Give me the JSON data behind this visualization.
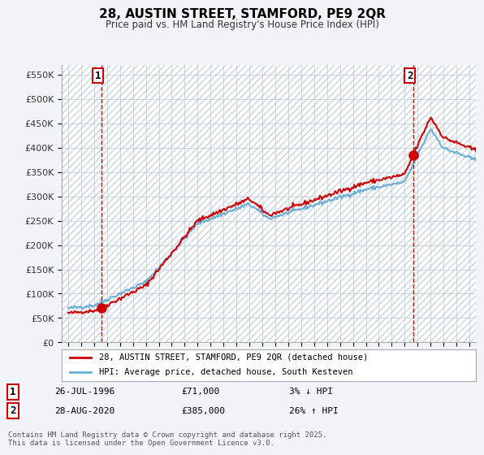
{
  "title": "28, AUSTIN STREET, STAMFORD, PE9 2QR",
  "subtitle": "Price paid vs. HM Land Registry's House Price Index (HPI)",
  "legend_line1": "28, AUSTIN STREET, STAMFORD, PE9 2QR (detached house)",
  "legend_line2": "HPI: Average price, detached house, South Kesteven",
  "annotation1_label": "1",
  "annotation1_date": "26-JUL-1996",
  "annotation1_price": "£71,000",
  "annotation1_hpi": "3% ↓ HPI",
  "annotation1_year": 1996.57,
  "annotation1_value": 71000,
  "annotation2_label": "2",
  "annotation2_date": "28-AUG-2020",
  "annotation2_price": "£385,000",
  "annotation2_hpi": "26% ↑ HPI",
  "annotation2_year": 2020.66,
  "annotation2_value": 385000,
  "hpi_color": "#6baed6",
  "price_color": "#cc0000",
  "background_color": "#f0f4f8",
  "plot_bg_color": "#ffffff",
  "grid_color": "#c0c8d8",
  "footer": "Contains HM Land Registry data © Crown copyright and database right 2025.\nThis data is licensed under the Open Government Licence v3.0.",
  "ylim": [
    0,
    570000
  ],
  "yticks": [
    0,
    50000,
    100000,
    150000,
    200000,
    250000,
    300000,
    350000,
    400000,
    450000,
    500000,
    550000
  ],
  "xlim": [
    1993.5,
    2025.5
  ]
}
